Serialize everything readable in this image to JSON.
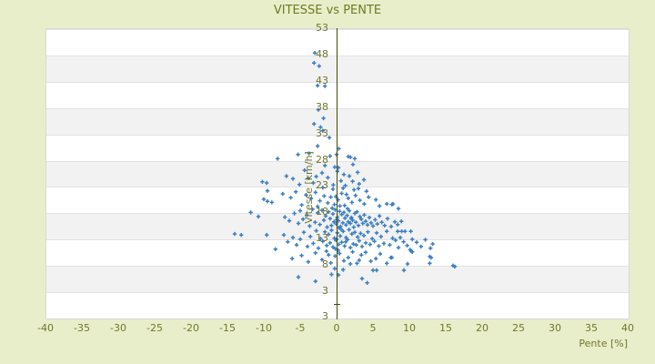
{
  "title": "VITESSE vs PENTE",
  "colors": {
    "page_background": "#e9eeca",
    "plot_background": "#ffffff",
    "band_fill": "#f2f2f2",
    "gridline": "#e2e2e2",
    "plot_border": "#d9d9d9",
    "axis_line": "#424a08",
    "text_olive": "#70752f",
    "title_color": "#6d7a23",
    "marker_blue": "#3b7ec2"
  },
  "chart_data": {
    "type": "scatter",
    "title": "VITESSE vs PENTE",
    "xlabel": "Pente [%]",
    "ylabel": "Vitesse [km/h]",
    "xlim": [
      -40,
      40
    ],
    "ylim": [
      -2,
      53
    ],
    "x_ticks": [
      -40,
      -35,
      -30,
      -25,
      -20,
      -15,
      -10,
      -5,
      0,
      5,
      10,
      15,
      20,
      25,
      30,
      35,
      40
    ],
    "y_ticks": [
      53,
      48,
      43,
      38,
      33,
      28,
      23,
      18,
      13,
      8,
      3
    ],
    "y_axis_bottom_label": "3",
    "grid": "horizontal-bands",
    "legend": "none",
    "marker": "plus",
    "points": [
      [
        -3.0,
        48.3
      ],
      [
        -3.1,
        46.4
      ],
      [
        -2.4,
        45.8
      ],
      [
        -2.6,
        42.1
      ],
      [
        -1.6,
        42.0
      ],
      [
        -2.5,
        37.5
      ],
      [
        -1.8,
        35.9
      ],
      [
        -3.1,
        34.8
      ],
      [
        -2.2,
        34.2
      ],
      [
        -1.9,
        33.5
      ],
      [
        -1.0,
        32.2
      ],
      [
        0.0,
        29.0
      ],
      [
        -0.9,
        28.7
      ],
      [
        1.6,
        28.6
      ],
      [
        1.9,
        28.5
      ],
      [
        -3.8,
        29.2
      ],
      [
        -5.3,
        29.0
      ],
      [
        -8.1,
        28.2
      ],
      [
        2.5,
        28.2
      ],
      [
        0.3,
        30.1
      ],
      [
        -2.6,
        30.6
      ],
      [
        0.25,
        26.5
      ],
      [
        -0.25,
        26.6
      ],
      [
        2.25,
        27.1
      ],
      [
        -4.4,
        26.0
      ],
      [
        -2.0,
        25.5
      ],
      [
        1.75,
        24.9
      ],
      [
        -6.9,
        24.9
      ],
      [
        -6.0,
        24.4
      ],
      [
        3.75,
        24.2
      ],
      [
        3.1,
        23.4
      ],
      [
        -10.2,
        23.8
      ],
      [
        -9.6,
        23.6
      ],
      [
        -1.2,
        24.6
      ],
      [
        0.6,
        24.0
      ],
      [
        -3.2,
        23.6
      ],
      [
        -0.45,
        23.2
      ],
      [
        1.2,
        23.1
      ],
      [
        -5.1,
        23.3
      ],
      [
        2.2,
        23.9
      ],
      [
        -2.8,
        24.8
      ],
      [
        0.1,
        25.8
      ],
      [
        -1.6,
        26.9
      ],
      [
        1.0,
        25.2
      ],
      [
        -3.9,
        24.5
      ],
      [
        2.9,
        25.6
      ],
      [
        -9.5,
        22.1
      ],
      [
        -8.9,
        19.9
      ],
      [
        -9.5,
        20.1
      ],
      [
        -7.4,
        21.5
      ],
      [
        -6.3,
        20.8
      ],
      [
        -5.6,
        21.9
      ],
      [
        -4.2,
        21.3
      ],
      [
        -3.5,
        20.6
      ],
      [
        -2.9,
        21.8
      ],
      [
        -2.3,
        20.2
      ],
      [
        -1.7,
        21.1
      ],
      [
        -1.2,
        19.8
      ],
      [
        -0.8,
        20.9
      ],
      [
        -0.3,
        19.5
      ],
      [
        0.2,
        20.4
      ],
      [
        0.7,
        21.6
      ],
      [
        1.1,
        19.3
      ],
      [
        1.6,
        20.7
      ],
      [
        2.1,
        19.9
      ],
      [
        2.6,
        21.2
      ],
      [
        3.2,
        20.3
      ],
      [
        3.8,
        19.6
      ],
      [
        4.4,
        20.9
      ],
      [
        5.4,
        20.4
      ],
      [
        6.9,
        19.6
      ],
      [
        7.75,
        19.6
      ],
      [
        -0.5,
        22.4
      ],
      [
        0.9,
        22.6
      ],
      [
        2.4,
        22.3
      ],
      [
        -1.9,
        22.7
      ],
      [
        4.1,
        22.0
      ],
      [
        -10.0,
        20.5
      ],
      [
        0.45,
        19.2
      ],
      [
        1.35,
        21.4
      ],
      [
        -0.1,
        21.0
      ],
      [
        3.0,
        22.5
      ],
      [
        -4.8,
        19.4
      ],
      [
        5.9,
        19.2
      ],
      [
        -2.6,
        19.1
      ],
      [
        7.6,
        19.5
      ],
      [
        -11.8,
        18.0
      ],
      [
        -10.75,
        17.2
      ],
      [
        -7.1,
        17.1
      ],
      [
        -5.25,
        15.9
      ],
      [
        -6.5,
        16.4
      ],
      [
        -5.8,
        17.8
      ],
      [
        -5.0,
        18.3
      ],
      [
        -4.6,
        16.7
      ],
      [
        -4.1,
        17.5
      ],
      [
        -3.7,
        15.4
      ],
      [
        -3.3,
        18.6
      ],
      [
        -2.95,
        16.1
      ],
      [
        -2.6,
        17.9
      ],
      [
        -2.3,
        15.7
      ],
      [
        -2.0,
        18.4
      ],
      [
        -1.75,
        16.5
      ],
      [
        -1.5,
        17.3
      ],
      [
        -1.3,
        15.2
      ],
      [
        -1.1,
        18.1
      ],
      [
        -0.9,
        16.8
      ],
      [
        -0.7,
        15.5
      ],
      [
        -0.5,
        17.7
      ],
      [
        -0.35,
        16.2
      ],
      [
        -0.2,
        18.5
      ],
      [
        -0.05,
        15.8
      ],
      [
        0.1,
        17.1
      ],
      [
        0.25,
        16.4
      ],
      [
        0.4,
        18.2
      ],
      [
        0.55,
        15.3
      ],
      [
        0.7,
        17.6
      ],
      [
        0.85,
        16.0
      ],
      [
        1.0,
        18.0
      ],
      [
        1.15,
        16.9
      ],
      [
        1.3,
        15.6
      ],
      [
        1.45,
        17.4
      ],
      [
        1.6,
        16.2
      ],
      [
        1.75,
        18.3
      ],
      [
        1.9,
        15.9
      ],
      [
        2.05,
        17.0
      ],
      [
        2.2,
        16.5
      ],
      [
        2.35,
        15.2
      ],
      [
        2.5,
        17.8
      ],
      [
        2.65,
        16.1
      ],
      [
        2.8,
        18.1
      ],
      [
        3.0,
        15.5
      ],
      [
        3.2,
        17.2
      ],
      [
        3.4,
        16.7
      ],
      [
        3.6,
        15.9
      ],
      [
        3.8,
        17.5
      ],
      [
        4.0,
        16.3
      ],
      [
        4.25,
        15.6
      ],
      [
        4.5,
        17.0
      ],
      [
        4.75,
        16.0
      ],
      [
        5.0,
        15.4
      ],
      [
        5.3,
        16.6
      ],
      [
        5.6,
        15.8
      ],
      [
        5.9,
        17.3
      ],
      [
        6.2,
        16.1
      ],
      [
        6.6,
        15.5
      ],
      [
        7.0,
        16.8
      ],
      [
        7.5,
        15.3
      ],
      [
        8.0,
        16.2
      ],
      [
        8.9,
        16.3
      ],
      [
        8.5,
        18.7
      ],
      [
        8.4,
        15.7
      ],
      [
        0.0,
        16.6
      ],
      [
        -0.6,
        18.8
      ],
      [
        1.5,
        18.7
      ],
      [
        0.3,
        15.1
      ],
      [
        2.0,
        16.8
      ],
      [
        -14.0,
        13.9
      ],
      [
        -13.1,
        13.7
      ],
      [
        -9.6,
        13.7
      ],
      [
        -7.25,
        13.7
      ],
      [
        -8.4,
        11.0
      ],
      [
        -6.7,
        12.4
      ],
      [
        -6.0,
        13.2
      ],
      [
        -5.5,
        11.8
      ],
      [
        -5.0,
        12.9
      ],
      [
        -4.5,
        14.2
      ],
      [
        -4.0,
        11.5
      ],
      [
        -3.6,
        13.4
      ],
      [
        -3.2,
        12.1
      ],
      [
        -2.8,
        14.5
      ],
      [
        -2.5,
        11.2
      ],
      [
        -2.2,
        13.0
      ],
      [
        -1.9,
        12.5
      ],
      [
        -1.6,
        14.3
      ],
      [
        -1.35,
        11.7
      ],
      [
        -1.1,
        13.8
      ],
      [
        -0.9,
        12.2
      ],
      [
        -0.7,
        14.6
      ],
      [
        -0.5,
        11.4
      ],
      [
        -0.3,
        13.1
      ],
      [
        -0.1,
        12.7
      ],
      [
        0.1,
        14.1
      ],
      [
        0.3,
        11.9
      ],
      [
        0.5,
        13.5
      ],
      [
        0.7,
        12.3
      ],
      [
        0.9,
        14.4
      ],
      [
        1.1,
        11.6
      ],
      [
        1.3,
        13.2
      ],
      [
        1.5,
        12.8
      ],
      [
        1.7,
        14.7
      ],
      [
        1.9,
        11.3
      ],
      [
        2.1,
        13.9
      ],
      [
        2.3,
        12.0
      ],
      [
        2.5,
        14.2
      ],
      [
        2.7,
        11.8
      ],
      [
        2.9,
        13.3
      ],
      [
        3.1,
        12.6
      ],
      [
        3.3,
        14.0
      ],
      [
        3.5,
        11.5
      ],
      [
        3.75,
        13.6
      ],
      [
        4.0,
        12.2
      ],
      [
        4.3,
        14.3
      ],
      [
        4.6,
        11.9
      ],
      [
        4.9,
        13.0
      ],
      [
        5.2,
        12.5
      ],
      [
        5.5,
        14.1
      ],
      [
        5.8,
        11.6
      ],
      [
        6.1,
        13.4
      ],
      [
        6.5,
        12.1
      ],
      [
        6.9,
        14.4
      ],
      [
        7.3,
        11.8
      ],
      [
        7.7,
        13.1
      ],
      [
        8.1,
        12.7
      ],
      [
        8.5,
        11.3
      ],
      [
        8.75,
        13.2
      ],
      [
        9.2,
        12.4
      ],
      [
        9.7,
        11.7
      ],
      [
        10.4,
        12.9
      ],
      [
        11.0,
        12.3
      ],
      [
        11.6,
        11.5
      ],
      [
        12.2,
        12.8
      ],
      [
        12.9,
        11.2
      ],
      [
        13.2,
        12.0
      ],
      [
        8.4,
        14.4
      ],
      [
        8.95,
        14.4
      ],
      [
        9.4,
        14.4
      ],
      [
        10.2,
        14.4
      ],
      [
        0.0,
        12.9
      ],
      [
        -0.2,
        11.1
      ],
      [
        0.6,
        14.8
      ],
      [
        1.25,
        12.4
      ],
      [
        -6.1,
        9.2
      ],
      [
        -4.8,
        9.8
      ],
      [
        -3.9,
        8.6
      ],
      [
        -2.9,
        10.3
      ],
      [
        -2.0,
        9.0
      ],
      [
        -1.4,
        10.6
      ],
      [
        -0.8,
        8.4
      ],
      [
        -0.2,
        9.7
      ],
      [
        0.4,
        10.2
      ],
      [
        1.0,
        8.8
      ],
      [
        1.6,
        9.4
      ],
      [
        2.2,
        10.5
      ],
      [
        2.8,
        8.3
      ],
      [
        3.4,
        9.9
      ],
      [
        4.0,
        10.4
      ],
      [
        4.7,
        8.7
      ],
      [
        5.4,
        9.2
      ],
      [
        6.0,
        10.1
      ],
      [
        6.9,
        8.3
      ],
      [
        7.45,
        9.4
      ],
      [
        7.6,
        9.4
      ],
      [
        10.1,
        10.9
      ],
      [
        10.25,
        10.6
      ],
      [
        10.4,
        10.5
      ],
      [
        12.8,
        9.6
      ],
      [
        13.0,
        9.4
      ],
      [
        12.8,
        8.3
      ],
      [
        9.75,
        8.2
      ],
      [
        1.9,
        8.2
      ],
      [
        0.2,
        10.8
      ],
      [
        -1.1,
        9.9
      ],
      [
        3.1,
        8.9
      ],
      [
        -5.25,
        5.7
      ],
      [
        -2.9,
        4.9
      ],
      [
        -0.7,
        6.2
      ],
      [
        -0.25,
        7.3
      ],
      [
        0.25,
        6.1
      ],
      [
        0.9,
        7.1
      ],
      [
        3.5,
        5.4
      ],
      [
        5.0,
        7.0
      ],
      [
        5.5,
        7.0
      ],
      [
        9.25,
        7.0
      ],
      [
        16.0,
        7.9
      ],
      [
        16.25,
        7.7
      ],
      [
        4.2,
        4.6
      ]
    ]
  }
}
